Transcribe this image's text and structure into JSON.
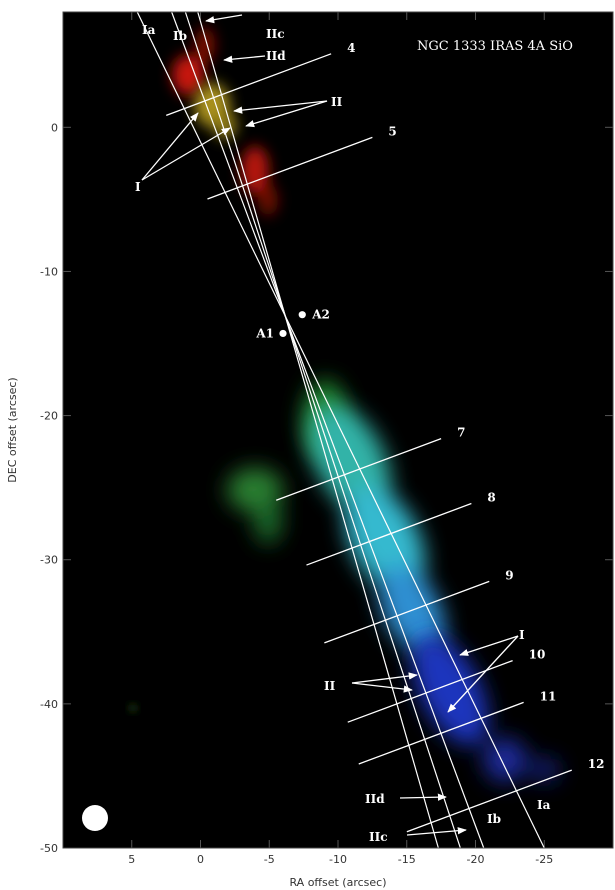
{
  "title": "NGC 1333 IRAS 4A SiO",
  "axes": {
    "xlabel": "RA offset (arcsec)",
    "ylabel": "DEC offset (arcsec)",
    "xlim": [
      10,
      -30
    ],
    "ylim": [
      -50,
      8
    ],
    "xticks": [
      5,
      0,
      -5,
      -10,
      -15,
      -20,
      -25
    ],
    "xtick_labels": [
      "5",
      "0",
      "-5",
      "-10",
      "-15",
      "-20",
      "-25"
    ],
    "yticks": [
      0,
      -10,
      -20,
      -30,
      -40,
      -50
    ],
    "ytick_labels": [
      "0",
      "-10",
      "-20",
      "-30",
      "-40",
      "-50"
    ]
  },
  "sources": [
    {
      "label": "A1",
      "ra": -6.0,
      "dec": -14.3
    },
    {
      "label": "A2",
      "ra": -7.4,
      "dec": -13.0
    }
  ],
  "jet_axes": [
    {
      "name": "Ia",
      "end1": [
        4.6,
        8.0
      ],
      "end2": [
        -25.0,
        -50.0
      ]
    },
    {
      "name": "Ib",
      "end1": [
        2.1,
        8.0
      ],
      "end2": [
        -20.6,
        -50.0
      ]
    },
    {
      "name": "IIc",
      "end1": [
        1.1,
        8.0
      ],
      "end2": [
        -18.9,
        -50.0
      ]
    },
    {
      "name": "IId",
      "end1": [
        0.2,
        8.0
      ],
      "end2": [
        -17.3,
        -50.0
      ]
    }
  ],
  "cuts": [
    {
      "label": "4",
      "ra": -9.5,
      "dec": 5.1
    },
    {
      "label": "5",
      "ra": -12.5,
      "dec": -0.7
    },
    {
      "label": "7",
      "ra": -17.5,
      "dec": -21.6
    },
    {
      "label": "8",
      "ra": -19.7,
      "dec": -26.1
    },
    {
      "label": "9",
      "ra": -21.0,
      "dec": -31.5
    },
    {
      "label": "10",
      "ra": -22.7,
      "dec": -37.0
    },
    {
      "label": "11",
      "ra": -23.5,
      "dec": -39.9
    },
    {
      "label": "12",
      "ra": -27.0,
      "dec": -44.6
    }
  ],
  "labels": {
    "Ia_top": "Ia",
    "Ib_top": "Ib",
    "IIc_top": "IIc",
    "IId_top": "IId",
    "II_top": "II",
    "I_top": "I",
    "I_bottom": "I",
    "II_bottom": "II",
    "IId_bottom": "IId",
    "IIc_bottom": "IIc",
    "Ib_bottom": "Ib",
    "Ia_bottom": "Ia"
  },
  "colors": {
    "background": "#000000",
    "red_lobe": "#d11a0a",
    "yellow_knot": "#b29a12",
    "green_lobe": "#2f8a36",
    "cyan_lobe": "#35b7c4",
    "blue_lobe": "#1c2fb8",
    "overlay": "#ffffff"
  }
}
